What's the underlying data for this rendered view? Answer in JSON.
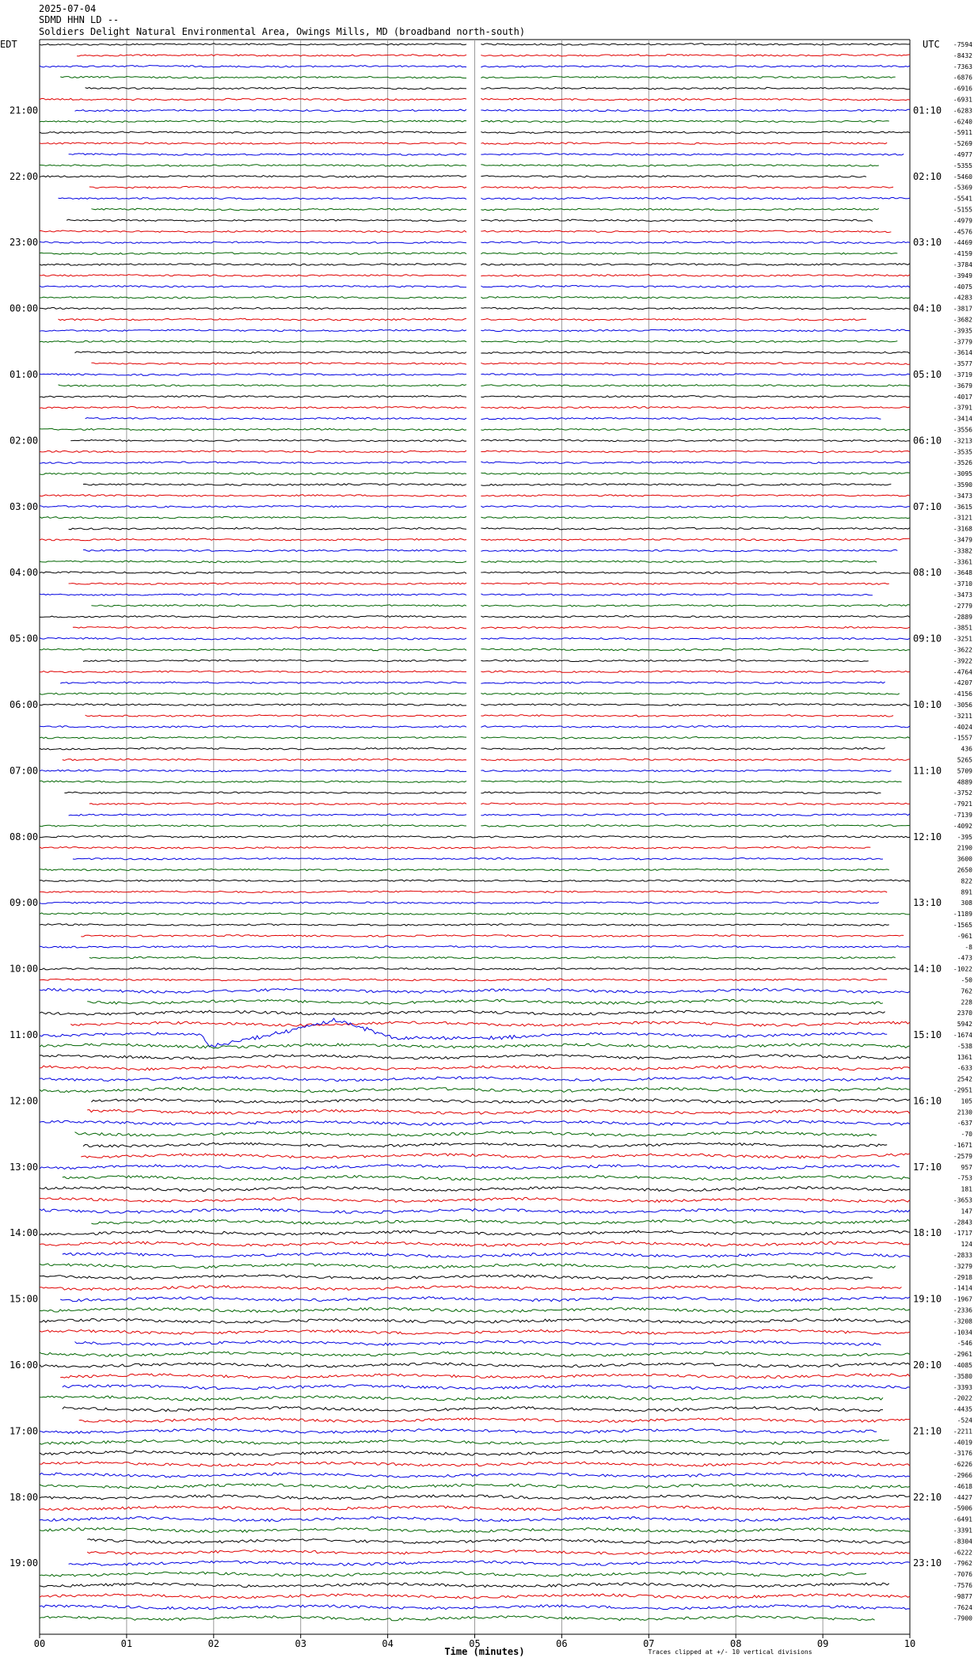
{
  "chart_data": {
    "type": "helicorder",
    "date": "2025-07-04",
    "station": "SDMD HHN LD --",
    "title": "Soldiers Delight Natural Environmental Area, Owings Mills, MD (broadband north-south)",
    "left_zone": "EDT",
    "right_zone": "UTC",
    "left_times": [
      "21:00",
      "22:00",
      "23:00",
      "00:00",
      "01:00",
      "02:00",
      "03:00",
      "04:00",
      "05:00",
      "06:00",
      "07:00",
      "08:00",
      "09:00",
      "10:00",
      "11:00",
      "12:00",
      "13:00",
      "14:00",
      "15:00",
      "16:00",
      "17:00",
      "18:00",
      "19:00"
    ],
    "right_times": [
      "01:10",
      "02:10",
      "03:10",
      "04:10",
      "05:10",
      "06:10",
      "07:10",
      "08:10",
      "09:10",
      "10:10",
      "11:10",
      "12:10",
      "13:10",
      "14:10",
      "15:10",
      "16:10",
      "17:10",
      "18:10",
      "19:10",
      "20:10",
      "21:10",
      "22:10",
      "23:10"
    ],
    "offsets": [
      -7594,
      -8432,
      -7363,
      -6876,
      -6916,
      -6931,
      -6283,
      -6240,
      -5911,
      -5269,
      -4977,
      -5355,
      -5460,
      -5369,
      -5541,
      -5155,
      -4979,
      -4576,
      -4469,
      -4159,
      -3784,
      -3949,
      -4075,
      -4283,
      -3817,
      -3682,
      -3935,
      -3779,
      -3614,
      -3577,
      -3719,
      -3679,
      -4017,
      -3791,
      -3414,
      -3556,
      -3213,
      -3535,
      -3526,
      -3095,
      -3590,
      -3473,
      -3615,
      -3121,
      -3168,
      -3479,
      -3382,
      -3361,
      -3648,
      -3710,
      -3473,
      -2779,
      -2889,
      -3851,
      -3251,
      -3622,
      -3922,
      -4764,
      -4207,
      -4156,
      -3056,
      -3211,
      -4024,
      -1557,
      436,
      5265,
      5709,
      4889,
      -3752,
      -7921,
      -7139,
      -4092,
      -395,
      2190,
      3600,
      2650,
      822,
      891,
      308,
      -1189,
      -1565,
      -961,
      -8,
      -473,
      -1022,
      -50,
      762,
      228,
      2370,
      5942,
      -1674,
      -538,
      1361,
      -633,
      2542,
      -2951,
      105,
      2130,
      -637,
      -70,
      -1671,
      -2579,
      957,
      -753,
      181,
      -3653,
      147,
      -2843,
      -1717,
      124,
      -2833,
      -3279,
      -2918,
      -1414,
      -1967,
      -2336,
      -3208,
      -1034,
      -546,
      -2961,
      -4085,
      -3580,
      -3393,
      -2022,
      -4435,
      -524,
      -2211,
      -4019,
      -3176,
      -6226,
      -2966,
      -4618,
      -4427,
      -5906,
      -6491,
      -3391,
      -8304,
      -6222,
      -7962,
      -7076,
      -7576,
      -9877,
      -7624,
      -7900
    ],
    "colors": [
      "#000000",
      "#e00000",
      "#0000e0",
      "#006400"
    ],
    "xlim": [
      0,
      10
    ],
    "xticks": [
      {
        "value": 0,
        "label": "00"
      },
      {
        "value": 1,
        "label": "01"
      },
      {
        "value": 2,
        "label": "02"
      },
      {
        "value": 3,
        "label": "03"
      },
      {
        "value": 4,
        "label": "04"
      },
      {
        "value": 5,
        "label": "05"
      },
      {
        "value": 6,
        "label": "06"
      },
      {
        "value": 7,
        "label": "07"
      },
      {
        "value": 8,
        "label": "08"
      },
      {
        "value": 9,
        "label": "09"
      },
      10
    ],
    "grid": true,
    "xlabel": "Time (minutes)",
    "note": "Traces clipped at +/- 10 vertical divisions"
  }
}
